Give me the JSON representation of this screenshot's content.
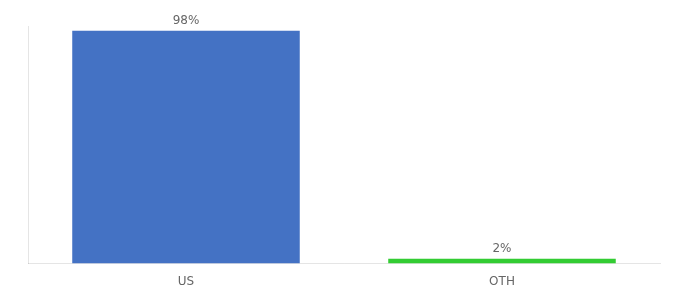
{
  "chart_data": {
    "type": "bar",
    "categories": [
      "US",
      "OTH"
    ],
    "values": [
      98,
      2
    ],
    "value_labels": [
      "98%",
      "2%"
    ],
    "colors": [
      "#4472c4",
      "#33cc33"
    ],
    "ylim": [
      0,
      100
    ],
    "data_labels": true,
    "tick_labels": "x",
    "grid": false
  }
}
